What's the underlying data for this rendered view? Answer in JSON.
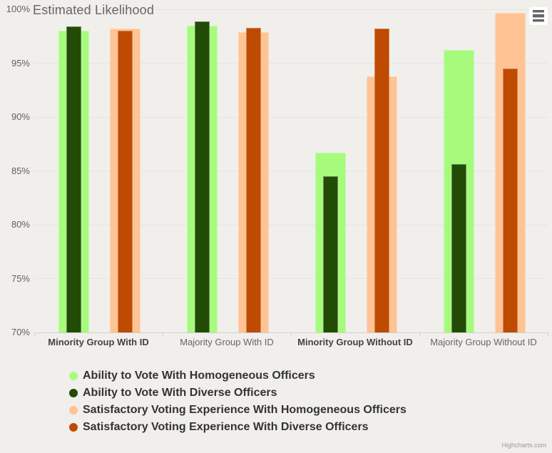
{
  "chart_data": {
    "type": "bar",
    "title": "Estimated Likelihood",
    "categories": [
      {
        "label": "Minority Group With ID",
        "bold": true
      },
      {
        "label": "Majority Group With ID",
        "bold": false
      },
      {
        "label": "Minority Group Without ID",
        "bold": true
      },
      {
        "label": "Majority Group Without ID",
        "bold": false
      }
    ],
    "series": [
      {
        "name": "Ability to Vote With Homogeneous Officers",
        "color": "#a6fb7d",
        "values": [
          98.0,
          98.5,
          86.7,
          96.2
        ]
      },
      {
        "name": "Ability to Vote With Diverse Officers",
        "color": "#224c05",
        "values": [
          98.4,
          98.9,
          84.5,
          85.6
        ]
      },
      {
        "name": "Satisfactory Voting Experience With Homogeneous Officers",
        "color": "#ffc394",
        "values": [
          98.2,
          97.9,
          93.8,
          99.7
        ]
      },
      {
        "name": "Satisfactory Voting Experience With Diverse Officers",
        "color": "#bf4a02",
        "values": [
          98.0,
          98.3,
          98.2,
          94.5
        ]
      }
    ],
    "ylim": [
      70,
      100
    ],
    "yticks": [
      "70%",
      "75%",
      "80%",
      "85%",
      "90%",
      "95%",
      "100%"
    ],
    "grid": true,
    "legend_position": "bottom-left-vertical"
  },
  "credits": "Highcharts.com",
  "colors": {
    "background": "#f0efec",
    "gridline": "#e4e3df",
    "axis_line": "#d2d1cd",
    "title_text": "#666666",
    "tick_label": "#606060",
    "legend_text": "#333333"
  }
}
